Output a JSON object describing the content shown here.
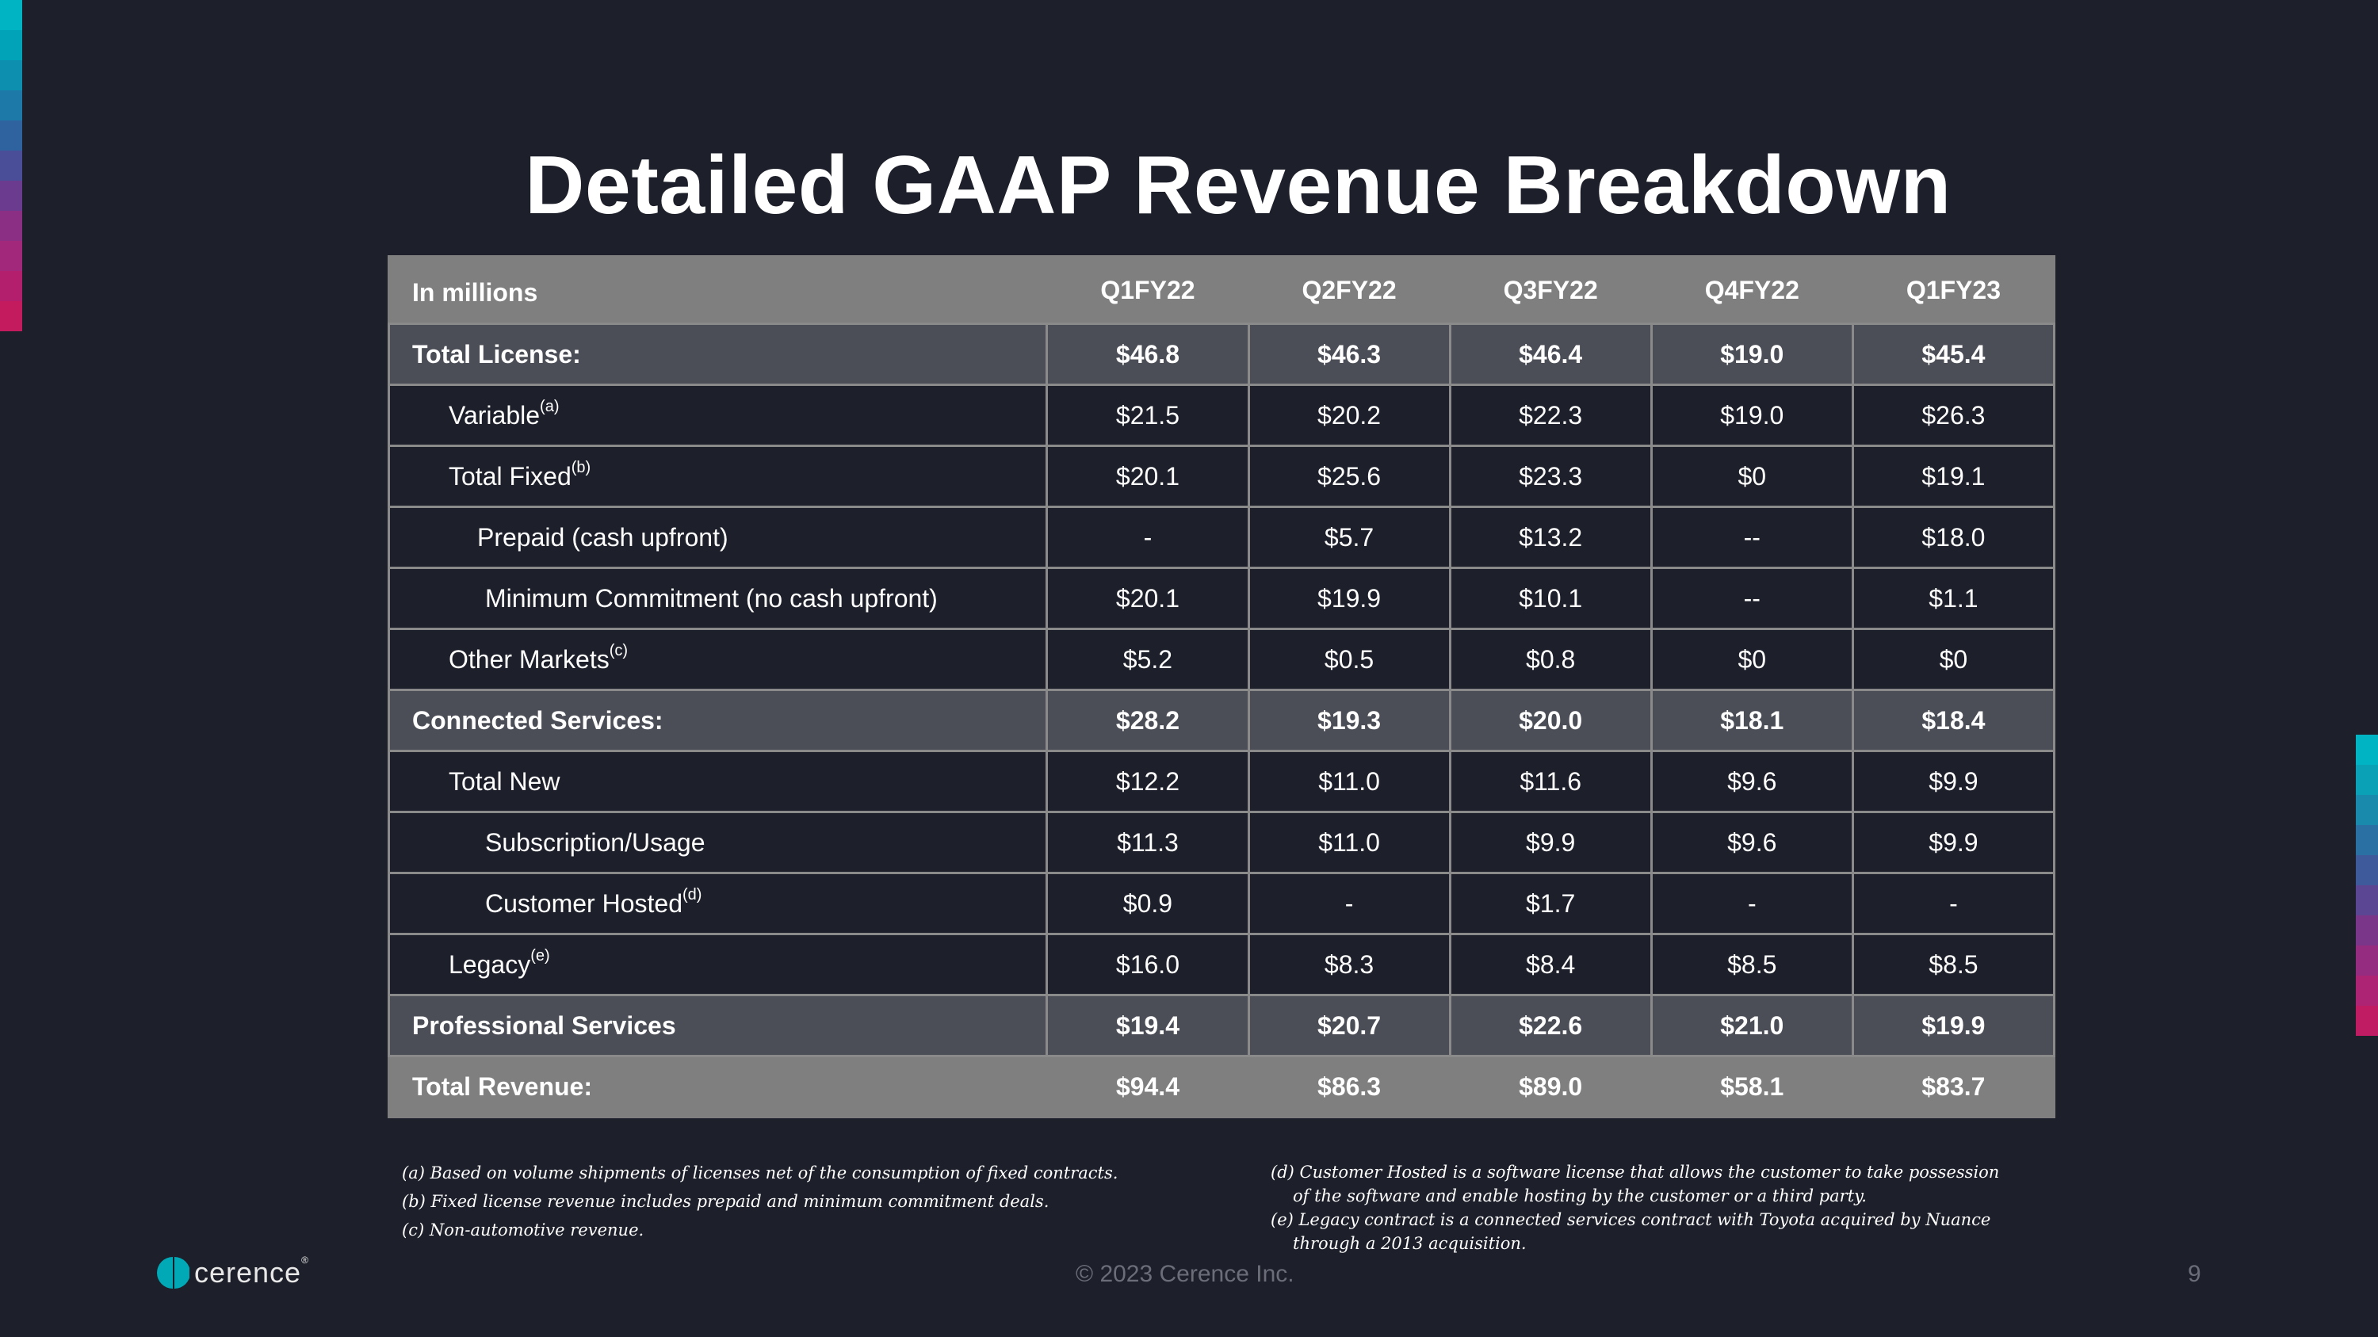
{
  "title": "Detailed GAAP Revenue Breakdown",
  "table": {
    "header_label": "In millions",
    "columns": [
      "Q1FY22",
      "Q2FY22",
      "Q3FY22",
      "Q4FY22",
      "Q1FY23"
    ],
    "rows": [
      {
        "label": "Total License:",
        "sup": "",
        "values": [
          "$46.8",
          "$46.3",
          "$46.4",
          "$19.0",
          "$45.4"
        ]
      },
      {
        "label": "Variable",
        "sup": "(a)",
        "values": [
          "$21.5",
          "$20.2",
          "$22.3",
          "$19.0",
          "$26.3"
        ]
      },
      {
        "label": "Total Fixed",
        "sup": "(b)",
        "values": [
          "$20.1",
          "$25.6",
          "$23.3",
          "$0",
          "$19.1"
        ]
      },
      {
        "label": "Prepaid (cash upfront)",
        "sup": "",
        "values": [
          "-",
          "$5.7",
          "$13.2",
          "--",
          "$18.0"
        ]
      },
      {
        "label": "Minimum Commitment (no cash upfront)",
        "sup": "",
        "values": [
          "$20.1",
          "$19.9",
          "$10.1",
          "--",
          "$1.1"
        ]
      },
      {
        "label": "Other Markets",
        "sup": "(c)",
        "values": [
          "$5.2",
          "$0.5",
          "$0.8",
          "$0",
          "$0"
        ]
      },
      {
        "label": "Connected Services:",
        "sup": "",
        "values": [
          "$28.2",
          "$19.3",
          "$20.0",
          "$18.1",
          "$18.4"
        ]
      },
      {
        "label": "Total New",
        "sup": "",
        "values": [
          "$12.2",
          "$11.0",
          "$11.6",
          "$9.6",
          "$9.9"
        ]
      },
      {
        "label": "Subscription/Usage",
        "sup": "",
        "values": [
          "$11.3",
          "$11.0",
          "$9.9",
          "$9.6",
          "$9.9"
        ]
      },
      {
        "label": "Customer Hosted",
        "sup": "(d)",
        "values": [
          "$0.9",
          "-",
          "$1.7",
          "-",
          "-"
        ]
      },
      {
        "label": "Legacy",
        "sup": "(e)",
        "values": [
          "$16.0",
          "$8.3",
          "$8.4",
          "$8.5",
          "$8.5"
        ]
      },
      {
        "label": "Professional Services",
        "sup": "",
        "values": [
          "$19.4",
          "$20.7",
          "$22.6",
          "$21.0",
          "$19.9"
        ]
      },
      {
        "label": "Total Revenue:",
        "sup": "",
        "values": [
          "$94.4",
          "$86.3",
          "$89.0",
          "$58.1",
          "$83.7"
        ]
      }
    ]
  },
  "footnotes_left": [
    "(a) Based on volume shipments of licenses net of  the consumption of fixed contracts.",
    "(b) Fixed license revenue includes prepaid and minimum commitment deals.",
    "(c) Non-automotive revenue."
  ],
  "footnotes_right": [
    {
      "line1": "(d) Customer Hosted is a software license that allows the customer to take possession",
      "line2": "of the software and enable hosting by the customer or a third party."
    },
    {
      "line1": "(e) Legacy contract is a connected services contract with Toyota acquired by Nuance",
      "line2": "through a 2013 acquisition."
    }
  ],
  "logo": {
    "word": "cerence",
    "mark": "®",
    "icon": "cerence-logo-icon",
    "color": "#00a9b5"
  },
  "copyright": "© 2023 Cerence Inc.",
  "page_number": "9",
  "colors": {
    "background": "#1d1f2a",
    "header_fill": "#7f7f7f",
    "subtotal_fill": "#4c4e57",
    "stripe_left": [
      "#00b4c4",
      "#00a3b8",
      "#0d8fb0",
      "#1d7aa8",
      "#2f63a0",
      "#4a4d97",
      "#6a3b8e",
      "#8a2f84",
      "#a1287a",
      "#b31f6d",
      "#c41a5e"
    ],
    "stripe_right": [
      "#00b4c4",
      "#0aa0b5",
      "#1a8aac",
      "#2b70a3",
      "#3f5a9b",
      "#5a4692",
      "#7a3688",
      "#962c7f",
      "#ad2474",
      "#c01c63"
    ]
  }
}
